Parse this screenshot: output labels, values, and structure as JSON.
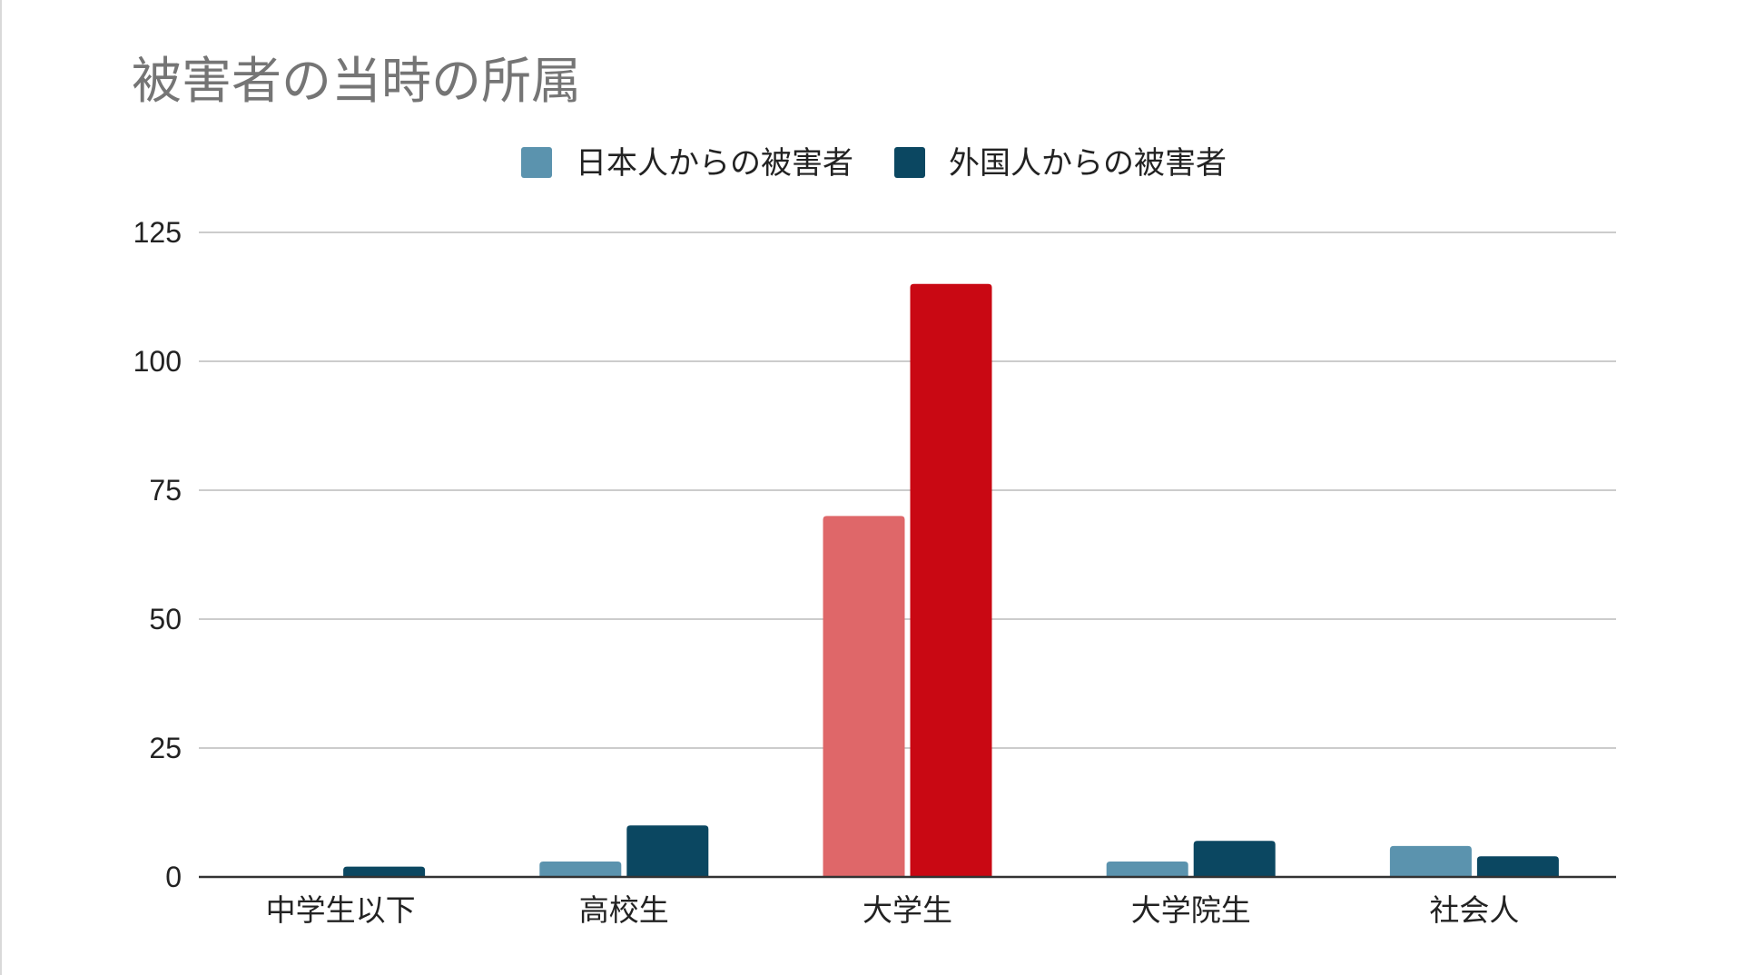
{
  "chart_data": {
    "type": "bar",
    "title": "被害者の当時の所属",
    "xlabel": "",
    "ylabel": "",
    "categories": [
      "中学生以下",
      "高校生",
      "大学生",
      "大学院生",
      "社会人"
    ],
    "series": [
      {
        "name": "日本人からの被害者",
        "color": "#5b93ae",
        "values": [
          0,
          3,
          70,
          3,
          6
        ]
      },
      {
        "name": "外国人からの被害者",
        "color": "#0b4761",
        "values": [
          2,
          10,
          115,
          7,
          4
        ]
      }
    ],
    "highlight": {
      "category": "大学生",
      "colors": [
        "#df6769",
        "#c90813"
      ]
    },
    "ylim": [
      0,
      125
    ],
    "yticks": [
      "0",
      "25",
      "50",
      "75",
      "100",
      "125"
    ],
    "grid": true,
    "legend_position": "top"
  }
}
